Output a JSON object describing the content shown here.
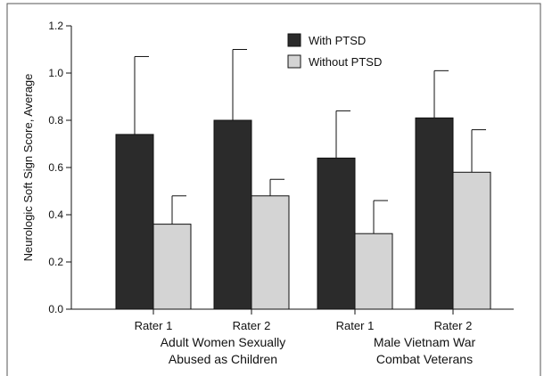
{
  "chart_data": {
    "type": "bar",
    "ylabel": "Neurologic Soft Sign Score, Average",
    "ylim": [
      0,
      1.2
    ],
    "yticks": [
      "0.0",
      "0.2",
      "0.4",
      "0.6",
      "0.8",
      "1.0",
      "1.2"
    ],
    "categories": [
      "Rater 1",
      "Rater 2",
      "Rater 1",
      "Rater 2"
    ],
    "groups": [
      {
        "label_line1": "Adult Women Sexually",
        "label_line2": "Abused as Children"
      },
      {
        "label_line1": "Male Vietnam War",
        "label_line2": "Combat Veterans"
      }
    ],
    "series": [
      {
        "name": "With PTSD",
        "color": "#2b2b2b",
        "values": [
          0.74,
          0.8,
          0.64,
          0.81
        ],
        "error": [
          0.33,
          0.3,
          0.2,
          0.2
        ]
      },
      {
        "name": "Without PTSD",
        "color": "#d4d4d4",
        "values": [
          0.36,
          0.48,
          0.32,
          0.58
        ],
        "error": [
          0.12,
          0.07,
          0.14,
          0.18
        ]
      }
    ],
    "legend_position": "top-center",
    "grid": false,
    "error_bars": "upper"
  }
}
